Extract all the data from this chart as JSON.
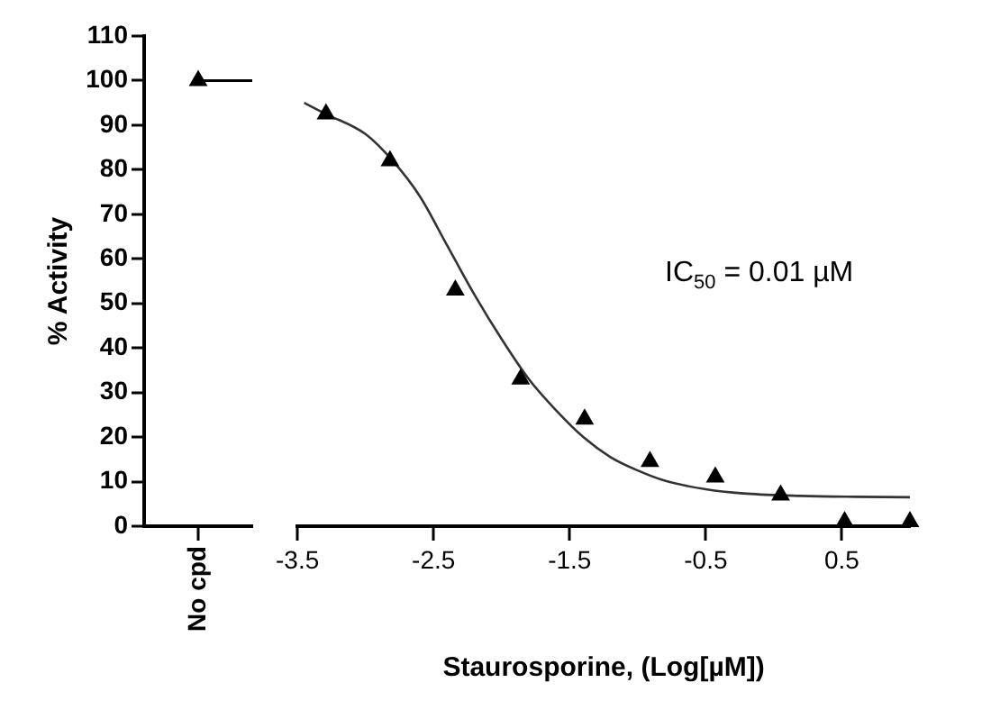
{
  "chart_data": [
    {
      "type": "scatter",
      "categories": [
        "No cpd"
      ],
      "ylabel": "% Activity",
      "ylim": [
        0,
        110
      ],
      "yticks": [
        0,
        10,
        20,
        30,
        40,
        50,
        60,
        70,
        80,
        90,
        100,
        110
      ],
      "marker": "triangle",
      "ref_lines": [
        {
          "axis": "y",
          "value": 100,
          "color": "#000000"
        }
      ],
      "series": [
        {
          "color": "#000000",
          "values": [
            100
          ]
        }
      ]
    },
    {
      "type": "scatter",
      "xlabel": "Staurosporine, (Log[µM])",
      "xlim": [
        -3.5,
        1.0
      ],
      "xticks": [
        -3.5,
        -2.5,
        -1.5,
        -0.5,
        0.5
      ],
      "ylim": [
        0,
        110
      ],
      "tick_labels": "x",
      "marker": "triangle",
      "annotations": [
        "IC$_{50}$ = 0.01 µM"
      ],
      "series": [
        {
          "color": "#000000",
          "x": [
            -3.29,
            -2.82,
            -2.34,
            -1.86,
            -1.39,
            -0.91,
            -0.43,
            0.05,
            0.52,
            1.0
          ],
          "values": [
            92.5,
            82,
            53,
            33,
            24,
            14.5,
            11,
            7,
            1,
            1
          ]
        },
        {
          "type": "line",
          "marker": "none",
          "color": "#333333",
          "x": [
            -3.45,
            -3.29,
            -3.0,
            -2.8,
            -2.6,
            -2.4,
            -2.2,
            -2.0,
            -1.8,
            -1.6,
            -1.4,
            -1.2,
            -1.0,
            -0.8,
            -0.5,
            -0.2,
            0.2,
            0.6,
            1.0
          ],
          "values": [
            95,
            92.5,
            88,
            82,
            74,
            63,
            52,
            42,
            33,
            26,
            20,
            15.5,
            12.5,
            10.2,
            8.3,
            7.3,
            6.8,
            6.6,
            6.5
          ]
        }
      ]
    }
  ]
}
